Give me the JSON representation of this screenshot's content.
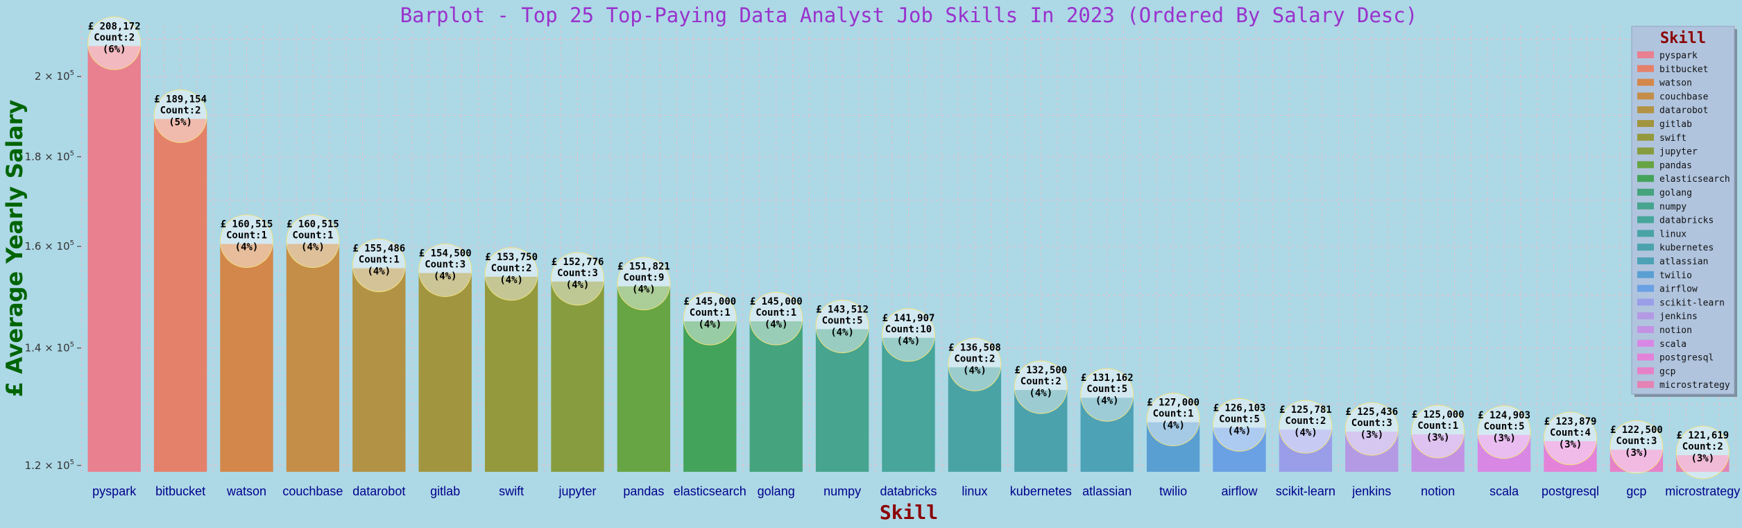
{
  "chart_data": {
    "type": "bar",
    "title": "Barplot - Top 25 Top-Paying Data Analyst Job Skills In 2023 (Ordered By Salary Desc)",
    "xlabel": "Skill",
    "ylabel": "£ Average Yearly Salary",
    "yscale": "log",
    "ylim": [
      119000,
      214000
    ],
    "yticks": [
      {
        "value": 120000,
        "base": "1.2",
        "exp": "5"
      },
      {
        "value": 140000,
        "base": "1.4",
        "exp": "5"
      },
      {
        "value": 160000,
        "base": "1.6",
        "exp": "5"
      },
      {
        "value": 180000,
        "base": "1.8",
        "exp": "5"
      },
      {
        "value": 200000,
        "base": "2",
        "exp": "5"
      }
    ],
    "grid": true,
    "legend_title": "Skill",
    "legend_position": "top-right",
    "categories": [
      "pyspark",
      "bitbucket",
      "watson",
      "couchbase",
      "datarobot",
      "gitlab",
      "swift",
      "jupyter",
      "pandas",
      "elasticsearch",
      "golang",
      "numpy",
      "databricks",
      "linux",
      "kubernetes",
      "atlassian",
      "twilio",
      "airflow",
      "scikit-learn",
      "jenkins",
      "notion",
      "scala",
      "postgresql",
      "gcp",
      "microstrategy"
    ],
    "values": [
      208172,
      189154,
      160515,
      160515,
      155486,
      154500,
      153750,
      152776,
      151821,
      145000,
      145000,
      143512,
      141907,
      136508,
      132500,
      131162,
      127000,
      126103,
      125781,
      125436,
      125000,
      124903,
      123879,
      122500,
      121619
    ],
    "value_labels": [
      "£ 208,172",
      "£ 189,154",
      "£ 160,515",
      "£ 160,515",
      "£ 155,486",
      "£ 154,500",
      "£ 153,750",
      "£ 152,776",
      "£ 151,821",
      "£ 145,000",
      "£ 145,000",
      "£ 143,512",
      "£ 141,907",
      "£ 136,508",
      "£ 132,500",
      "£ 131,162",
      "£ 127,000",
      "£ 126,103",
      "£ 125,781",
      "£ 125,436",
      "£ 125,000",
      "£ 124,903",
      "£ 123,879",
      "£ 122,500",
      "£ 121,619"
    ],
    "count_labels": [
      "Count:2",
      "Count:2",
      "Count:1",
      "Count:1",
      "Count:1",
      "Count:3",
      "Count:2",
      "Count:3",
      "Count:9",
      "Count:1",
      "Count:1",
      "Count:5",
      "Count:10",
      "Count:2",
      "Count:2",
      "Count:5",
      "Count:1",
      "Count:5",
      "Count:2",
      "Count:3",
      "Count:1",
      "Count:5",
      "Count:4",
      "Count:3",
      "Count:2"
    ],
    "percent_labels": [
      "(6%)",
      "(5%)",
      "(4%)",
      "(4%)",
      "(4%)",
      "(4%)",
      "(4%)",
      "(4%)",
      "(4%)",
      "(4%)",
      "(4%)",
      "(4%)",
      "(4%)",
      "(4%)",
      "(4%)",
      "(4%)",
      "(4%)",
      "(4%)",
      "(4%)",
      "(3%)",
      "(3%)",
      "(3%)",
      "(3%)",
      "(3%)",
      "(3%)"
    ],
    "colors": [
      "#e8808f",
      "#e4816b",
      "#d4874a",
      "#c48e48",
      "#b29244",
      "#a2953f",
      "#94993d",
      "#879c3e",
      "#67a443",
      "#44a35a",
      "#45a47d",
      "#47a48e",
      "#47a59b",
      "#49a3a5",
      "#4ba2ad",
      "#4ea2b6",
      "#5a9fd2",
      "#6aa0e4",
      "#9a9ee8",
      "#b49ae4",
      "#c392e4",
      "#d888e4",
      "#e382d8",
      "#e681c8",
      "#e483b4"
    ]
  }
}
